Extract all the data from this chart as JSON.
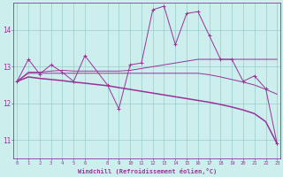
{
  "xlabel": "Windchill (Refroidissement éolien,°C)",
  "background_color": "#cceeed",
  "line_color": "#993399",
  "grid_color": "#99cccc",
  "ylim": [
    10.5,
    14.75
  ],
  "xlim": [
    -0.3,
    23.3
  ],
  "yticks": [
    11,
    12,
    13,
    14
  ],
  "x_ticks": [
    0,
    1,
    2,
    3,
    4,
    5,
    6,
    8,
    9,
    10,
    11,
    12,
    13,
    14,
    15,
    16,
    17,
    18,
    19,
    20,
    21,
    22,
    23
  ],
  "zigzag_x": [
    0,
    1,
    2,
    3,
    4,
    5,
    6,
    8,
    9,
    10,
    11,
    12,
    13,
    14,
    15,
    16,
    17,
    18,
    19,
    20,
    21,
    22,
    23
  ],
  "zigzag_y": [
    12.6,
    13.2,
    12.8,
    13.05,
    12.85,
    12.6,
    13.3,
    12.5,
    11.85,
    13.05,
    13.1,
    14.55,
    14.65,
    13.6,
    14.45,
    14.5,
    13.85,
    13.2,
    13.2,
    12.6,
    12.75,
    12.4,
    10.9
  ],
  "flat1_x": [
    0,
    1,
    2,
    3,
    4,
    5,
    6,
    8,
    9,
    10,
    11,
    12,
    13,
    14,
    15,
    16,
    17,
    18,
    19,
    20,
    21,
    22,
    23
  ],
  "flat1_y": [
    12.6,
    12.85,
    12.85,
    12.88,
    12.9,
    12.88,
    12.88,
    12.88,
    12.88,
    12.9,
    12.95,
    13.0,
    13.05,
    13.1,
    13.15,
    13.2,
    13.2,
    13.2,
    13.2,
    13.2,
    13.2,
    13.2,
    13.2
  ],
  "flat2_x": [
    0,
    1,
    2,
    3,
    4,
    5,
    6,
    8,
    9,
    10,
    11,
    12,
    13,
    14,
    15,
    16,
    17,
    18,
    19,
    20,
    21,
    22,
    23
  ],
  "flat2_y": [
    12.6,
    12.82,
    12.82,
    12.82,
    12.82,
    12.82,
    12.82,
    12.82,
    12.82,
    12.82,
    12.82,
    12.82,
    12.82,
    12.82,
    12.82,
    12.82,
    12.78,
    12.72,
    12.65,
    12.58,
    12.5,
    12.38,
    12.25
  ],
  "trend_x": [
    0,
    1,
    2,
    3,
    4,
    5,
    6,
    8,
    9,
    10,
    11,
    12,
    13,
    14,
    15,
    16,
    17,
    18,
    19,
    20,
    21,
    22,
    23
  ],
  "trend_y": [
    12.6,
    12.72,
    12.68,
    12.65,
    12.62,
    12.58,
    12.55,
    12.48,
    12.43,
    12.38,
    12.33,
    12.28,
    12.23,
    12.18,
    12.13,
    12.08,
    12.03,
    11.97,
    11.9,
    11.82,
    11.72,
    11.5,
    10.9
  ]
}
